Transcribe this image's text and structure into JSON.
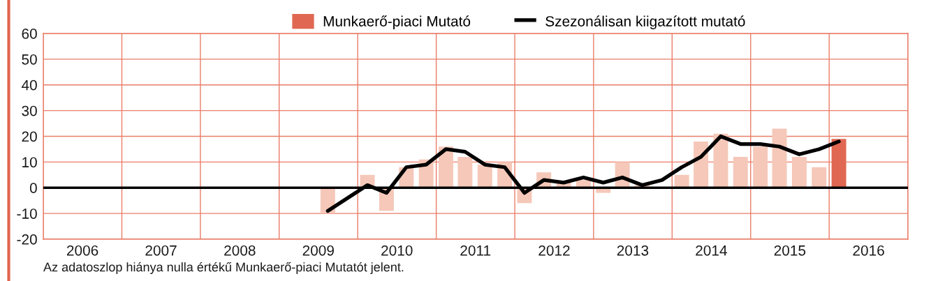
{
  "chart_data": {
    "type": "bar",
    "legend": "top",
    "grid": true,
    "x": [
      "2009-08-15",
      "2009-11-15",
      "2010-02-15",
      "2010-05-15",
      "2010-08-15",
      "2010-11-15",
      "2011-02-15",
      "2011-05-15",
      "2011-08-15",
      "2011-11-15",
      "2012-02-15",
      "2012-05-15",
      "2012-08-15",
      "2012-11-15",
      "2013-02-15",
      "2013-05-15",
      "2013-08-15",
      "2013-11-15",
      "2014-02-15",
      "2014-05-15",
      "2014-08-15",
      "2014-11-15",
      "2015-02-15",
      "2015-05-15",
      "2015-08-15",
      "2015-11-15",
      "2016-02-15"
    ],
    "xlim": [
      "2006-01-01",
      "2017-01-01"
    ],
    "xticks": [
      {
        "value": "2006-01-01",
        "label": null
      },
      {
        "value": "2007-01-01",
        "label": null
      },
      {
        "value": "2008-01-01",
        "label": null
      },
      {
        "value": "2009-01-01",
        "label": null
      },
      {
        "value": "2010-01-01",
        "label": null
      },
      {
        "value": "2011-01-01",
        "label": null
      },
      {
        "value": "2012-01-01",
        "label": null
      },
      {
        "value": "2013-01-01",
        "label": null
      },
      {
        "value": "2014-01-01",
        "label": null
      },
      {
        "value": "2015-01-01",
        "label": null
      },
      {
        "value": "2016-01-01",
        "label": null
      },
      {
        "value": "2017-01-01",
        "label": null
      },
      {
        "value": "2006-07-02",
        "label": "2006"
      },
      {
        "value": "2007-07-02",
        "label": "2007"
      },
      {
        "value": "2008-07-02",
        "label": "2008"
      },
      {
        "value": "2009-07-02",
        "label": "2009"
      },
      {
        "value": "2010-07-02",
        "label": "2010"
      },
      {
        "value": "2011-07-02",
        "label": "2011"
      },
      {
        "value": "2012-07-02",
        "label": "2012"
      },
      {
        "value": "2013-07-02",
        "label": "2013"
      },
      {
        "value": "2014-07-02",
        "label": "2014"
      },
      {
        "value": "2015-07-02",
        "label": "2015"
      },
      {
        "value": "2016-07-02",
        "label": "2016"
      }
    ],
    "ylim": [
      -20,
      60
    ],
    "yticks": [
      -20,
      -10,
      0,
      10,
      20,
      30,
      40,
      50,
      60
    ],
    "series": [
      {
        "name": "Munkaerő-piaci Mutató",
        "color": "#e06852",
        "colors": [
          "#f5c8b9",
          "#f5c8b9",
          "#f5c8b9",
          "#f5c8b9",
          "#f5c8b9",
          "#f5c8b9",
          "#f5c8b9",
          "#f5c8b9",
          "#f5c8b9",
          "#f5c8b9",
          "#f5c8b9",
          "#f5c8b9",
          "#f5c8b9",
          "#f5c8b9",
          "#f5c8b9",
          "#f5c8b9",
          "#f5c8b9",
          "#f5c8b9",
          "#f5c8b9",
          "#f5c8b9",
          "#f5c8b9",
          "#f5c8b9",
          "#f5c8b9",
          "#f5c8b9",
          "#f5c8b9",
          "#f5c8b9",
          "#e06852"
        ],
        "values": [
          -10,
          0,
          5,
          -9,
          8,
          11,
          16,
          12,
          9,
          10,
          -6,
          6,
          2,
          3,
          -2,
          10,
          1,
          0,
          5,
          18,
          21,
          12,
          16,
          23,
          12,
          8,
          19
        ]
      },
      {
        "name": "Szezonálisan kiigazított mutató",
        "type": "line",
        "color": "#000000",
        "values": [
          -9,
          -4,
          1,
          -2,
          8,
          9,
          15,
          14,
          9,
          8,
          -2,
          3,
          2,
          4,
          2,
          4,
          1,
          3,
          8,
          12,
          20,
          17,
          17,
          16,
          13,
          15,
          18
        ]
      }
    ],
    "ref_lines": [
      {
        "axis": "y",
        "value": 0,
        "color": "#000000"
      }
    ],
    "annotations": [
      "Az adatoszlop hiánya nulla értékű Munkaerő-piaci Mutatót jelent."
    ]
  }
}
